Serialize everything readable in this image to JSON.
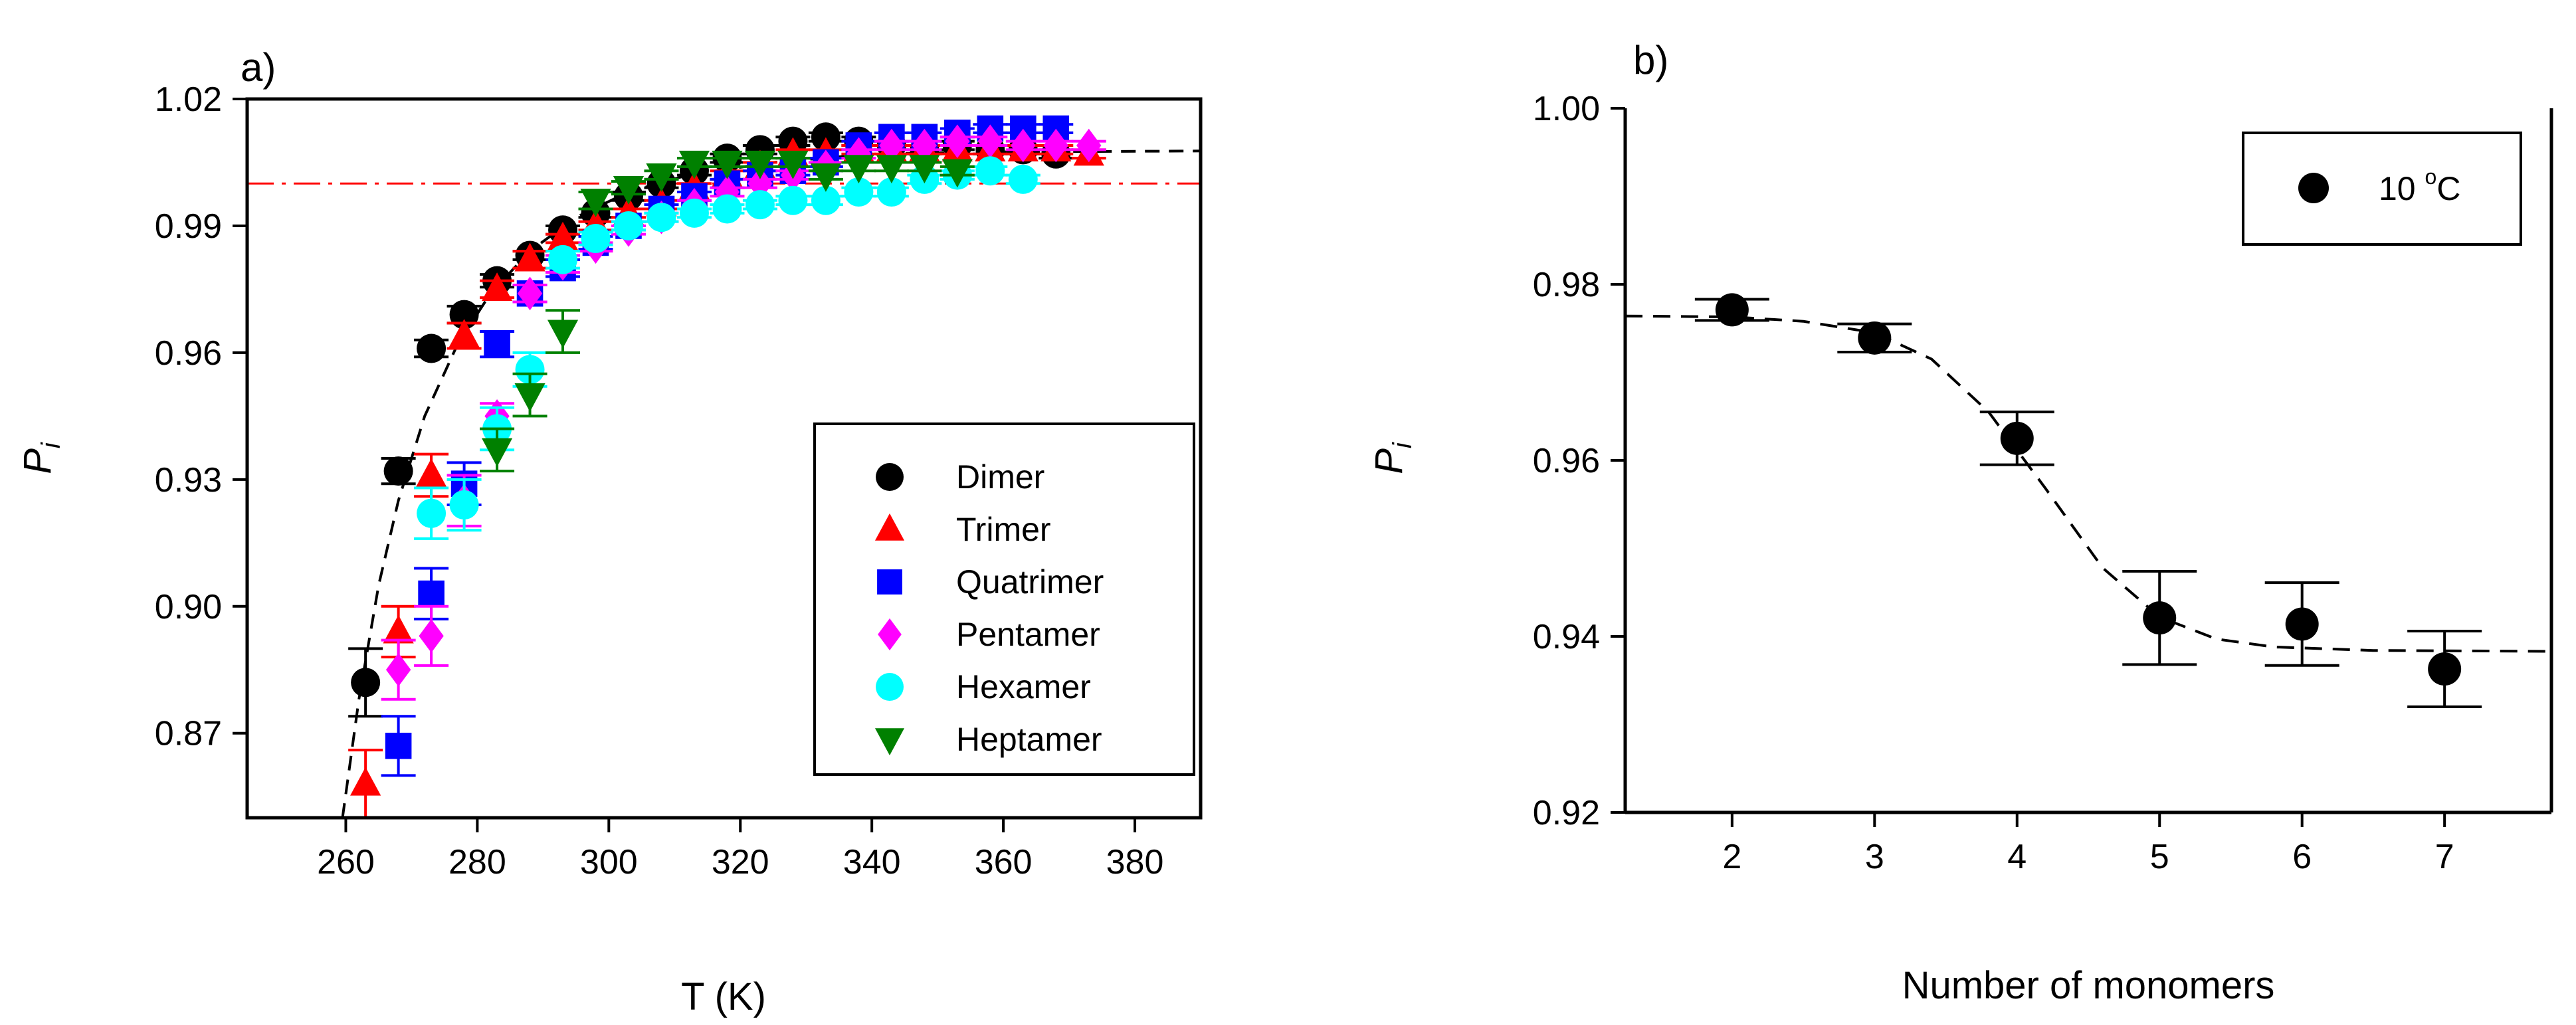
{
  "chart_data": [
    {
      "panel": "a)",
      "type": "scatter",
      "xlabel": "T (K)",
      "ylabel": "P",
      "ylabel_sub": "i",
      "xlim": [
        245,
        390
      ],
      "ylim": [
        0.85,
        1.02
      ],
      "xticks": [
        260,
        280,
        300,
        320,
        340,
        360,
        380
      ],
      "yticks": [
        0.87,
        0.9,
        0.93,
        0.96,
        0.99,
        1.02
      ],
      "xtick_labels": [
        "260",
        "280",
        "300",
        "320",
        "340",
        "360",
        "380"
      ],
      "ytick_labels": [
        "0.87",
        "0.90",
        "0.93",
        "0.96",
        "0.99",
        "1.02"
      ],
      "legend_position": "lower-right",
      "reference_line": {
        "y": 1.0,
        "style": "dash-dot",
        "color": "#ff0000"
      },
      "fit_curve": {
        "style": "dashed",
        "color": "#000000",
        "points": [
          [
            259.5,
            0.85
          ],
          [
            262,
            0.878
          ],
          [
            265,
            0.905
          ],
          [
            268,
            0.925
          ],
          [
            272,
            0.945
          ],
          [
            277,
            0.962
          ],
          [
            282,
            0.974
          ],
          [
            288,
            0.984
          ],
          [
            295,
            0.992
          ],
          [
            303,
            0.998
          ],
          [
            312,
            1.002
          ],
          [
            325,
            1.005
          ],
          [
            340,
            1.007
          ],
          [
            360,
            1.0075
          ],
          [
            390,
            1.0077
          ]
        ]
      },
      "series": [
        {
          "name": "Dimer",
          "marker": "circle",
          "color": "#000000",
          "x": [
            263,
            268,
            273,
            278,
            283,
            288,
            293,
            298,
            303,
            308,
            313,
            318,
            323,
            328,
            333,
            338,
            343,
            348,
            353,
            358,
            363,
            368
          ],
          "y": [
            0.882,
            0.932,
            0.961,
            0.969,
            0.977,
            0.983,
            0.989,
            0.993,
            0.997,
            1.0,
            1.003,
            1.006,
            1.008,
            1.01,
            1.011,
            1.01,
            1.009,
            1.008,
            1.009,
            1.008,
            1.008,
            1.007
          ],
          "err": [
            0.008,
            0.003,
            0.002,
            0.002,
            0.0015,
            0.001,
            0.001,
            0.001,
            0.001,
            0.001,
            0.001,
            0.001,
            0.001,
            0.001,
            0.001,
            0.001,
            0.001,
            0.001,
            0.001,
            0.001,
            0.001,
            0.001
          ]
        },
        {
          "name": "Trimer",
          "marker": "triangle-up",
          "color": "#ff0000",
          "x": [
            263,
            268,
            273,
            278,
            283,
            288,
            293,
            298,
            303,
            308,
            313,
            318,
            323,
            328,
            333,
            338,
            343,
            348,
            353,
            358,
            363,
            368,
            373
          ],
          "y": [
            0.858,
            0.894,
            0.931,
            0.964,
            0.975,
            0.982,
            0.987,
            0.99,
            0.993,
            0.995,
            0.999,
            1.002,
            1.004,
            1.007,
            1.007,
            1.008,
            1.008,
            1.008,
            1.008,
            1.008,
            1.008,
            1.008,
            1.007
          ],
          "err": [
            0.008,
            0.006,
            0.005,
            0.003,
            0.002,
            0.002,
            0.001,
            0.001,
            0.001,
            0.001,
            0.001,
            0.001,
            0.001,
            0.001,
            0.001,
            0.001,
            0.001,
            0.001,
            0.001,
            0.001,
            0.001,
            0.001,
            0.001
          ]
        },
        {
          "name": "Quatrimer",
          "marker": "square",
          "color": "#0000ff",
          "x": [
            268,
            273,
            278,
            283,
            288,
            293,
            298,
            303,
            308,
            313,
            318,
            323,
            328,
            333,
            338,
            343,
            348,
            353,
            358,
            363,
            368
          ],
          "y": [
            0.867,
            0.903,
            0.929,
            0.962,
            0.974,
            0.98,
            0.986,
            0.99,
            0.994,
            0.997,
            1.0,
            1.002,
            1.003,
            1.005,
            1.009,
            1.011,
            1.011,
            1.012,
            1.013,
            1.013,
            1.013
          ],
          "err": [
            0.007,
            0.006,
            0.005,
            0.003,
            0.002,
            0.002,
            0.0015,
            0.001,
            0.001,
            0.001,
            0.001,
            0.001,
            0.001,
            0.001,
            0.001,
            0.001,
            0.001,
            0.001,
            0.001,
            0.001,
            0.001
          ]
        },
        {
          "name": "Pentamer",
          "marker": "diamond",
          "color": "#ff00ff",
          "x": [
            268,
            273,
            278,
            283,
            288,
            293,
            298,
            303,
            308,
            313,
            318,
            323,
            328,
            333,
            338,
            343,
            348,
            353,
            358,
            363,
            368,
            373
          ],
          "y": [
            0.885,
            0.893,
            0.925,
            0.945,
            0.974,
            0.981,
            0.985,
            0.989,
            0.992,
            0.995,
            0.998,
            1.0,
            1.002,
            1.004,
            1.007,
            1.009,
            1.009,
            1.01,
            1.01,
            1.009,
            1.009,
            1.009
          ],
          "err": [
            0.007,
            0.007,
            0.006,
            0.003,
            0.002,
            0.002,
            0.001,
            0.001,
            0.001,
            0.001,
            0.001,
            0.001,
            0.001,
            0.001,
            0.001,
            0.001,
            0.001,
            0.001,
            0.001,
            0.001,
            0.001,
            0.001
          ]
        },
        {
          "name": "Hexamer",
          "marker": "circle",
          "color": "#00ffff",
          "x": [
            273,
            278,
            283,
            288,
            293,
            298,
            303,
            308,
            313,
            318,
            323,
            328,
            333,
            338,
            343,
            348,
            353,
            358,
            363
          ],
          "y": [
            0.922,
            0.924,
            0.942,
            0.956,
            0.982,
            0.987,
            0.99,
            0.992,
            0.993,
            0.994,
            0.995,
            0.996,
            0.996,
            0.998,
            0.998,
            1.001,
            1.002,
            1.003,
            1.001
          ],
          "err": [
            0.006,
            0.006,
            0.005,
            0.004,
            0.002,
            0.0015,
            0.001,
            0.001,
            0.001,
            0.001,
            0.001,
            0.001,
            0.001,
            0.001,
            0.001,
            0.001,
            0.001,
            0.001,
            0.001
          ]
        },
        {
          "name": "Heptamer",
          "marker": "triangle-down",
          "color": "#008000",
          "x": [
            283,
            288,
            293,
            298,
            303,
            308,
            313,
            318,
            323,
            328,
            333,
            338,
            343,
            348,
            353
          ],
          "y": [
            0.937,
            0.95,
            0.965,
            0.996,
            0.999,
            1.002,
            1.005,
            1.005,
            1.005,
            1.005,
            1.002,
            1.004,
            1.004,
            1.004,
            1.003
          ],
          "err": [
            0.005,
            0.005,
            0.005,
            0.002,
            0.0015,
            0.001,
            0.001,
            0.001,
            0.001,
            0.001,
            0.001,
            0.001,
            0.001,
            0.001,
            0.001
          ]
        }
      ]
    },
    {
      "panel": "b)",
      "type": "scatter",
      "xlabel": "Number of monomers",
      "ylabel": "P",
      "ylabel_sub": "i",
      "xlim": [
        1.25,
        7.75
      ],
      "ylim": [
        0.92,
        1.0
      ],
      "xticks": [
        2,
        3,
        4,
        5,
        6,
        7
      ],
      "yticks": [
        0.92,
        0.94,
        0.96,
        0.98,
        1.0
      ],
      "xtick_labels": [
        "2",
        "3",
        "4",
        "5",
        "6",
        "7"
      ],
      "ytick_labels": [
        "0.92",
        "0.94",
        "0.96",
        "0.98",
        "1.00"
      ],
      "legend_position": "top-right",
      "fit_curve": {
        "style": "dashed",
        "color": "#000000",
        "points": [
          [
            1.25,
            0.9764
          ],
          [
            2.0,
            0.9763
          ],
          [
            2.5,
            0.9758
          ],
          [
            3.0,
            0.9745
          ],
          [
            3.4,
            0.9715
          ],
          [
            3.8,
            0.9655
          ],
          [
            4.2,
            0.9568
          ],
          [
            4.6,
            0.9478
          ],
          [
            5.0,
            0.9422
          ],
          [
            5.4,
            0.9397
          ],
          [
            5.8,
            0.9388
          ],
          [
            6.5,
            0.9384
          ],
          [
            7.75,
            0.9383
          ]
        ]
      },
      "series": [
        {
          "name": "10 °C",
          "label_main": "10 ",
          "label_sup": "o",
          "label_unit": "C",
          "marker": "circle",
          "color": "#000000",
          "x": [
            2,
            3,
            4,
            5,
            6,
            7
          ],
          "y": [
            0.9771,
            0.9739,
            0.9625,
            0.9421,
            0.9414,
            0.9363
          ],
          "err": [
            0.0012,
            0.0016,
            0.003,
            0.0053,
            0.0047,
            0.0043
          ]
        }
      ]
    }
  ]
}
